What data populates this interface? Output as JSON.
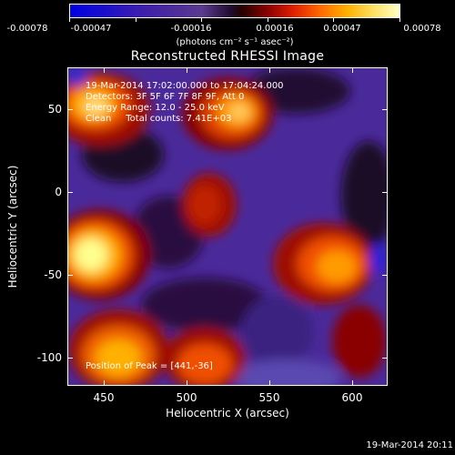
{
  "colorbar": {
    "labels": [
      "-0.00078",
      "-0.00047",
      "-0.00016",
      "0.00016",
      "0.00047",
      "0.00078"
    ],
    "units": "(photons cm⁻² s⁻¹ asec⁻²)"
  },
  "title": "Reconstructed RHESSI Image",
  "annotation": {
    "time": "19-Mar-2014 17:02:00.000 to 17:04:24.000",
    "detectors": "Detectors: 3F 5F 6F 7F 8F 9F, Att 0",
    "energy": "Energy Range: 12.0 - 25.0 keV",
    "clean": "Clean     Total counts: 7.41E+03",
    "peak": "Position of Peak = [441,-36]"
  },
  "axes": {
    "xlabel": "Heliocentric X (arcsec)",
    "ylabel": "Heliocentric Y (arcsec)",
    "xticks": [
      "450",
      "500",
      "550",
      "600"
    ],
    "yticks": [
      "50",
      "0",
      "-50",
      "-100"
    ]
  },
  "timestamp": "19-Mar-2014 20:11",
  "colors": {
    "background": "#000000",
    "text": "#ffffff"
  }
}
